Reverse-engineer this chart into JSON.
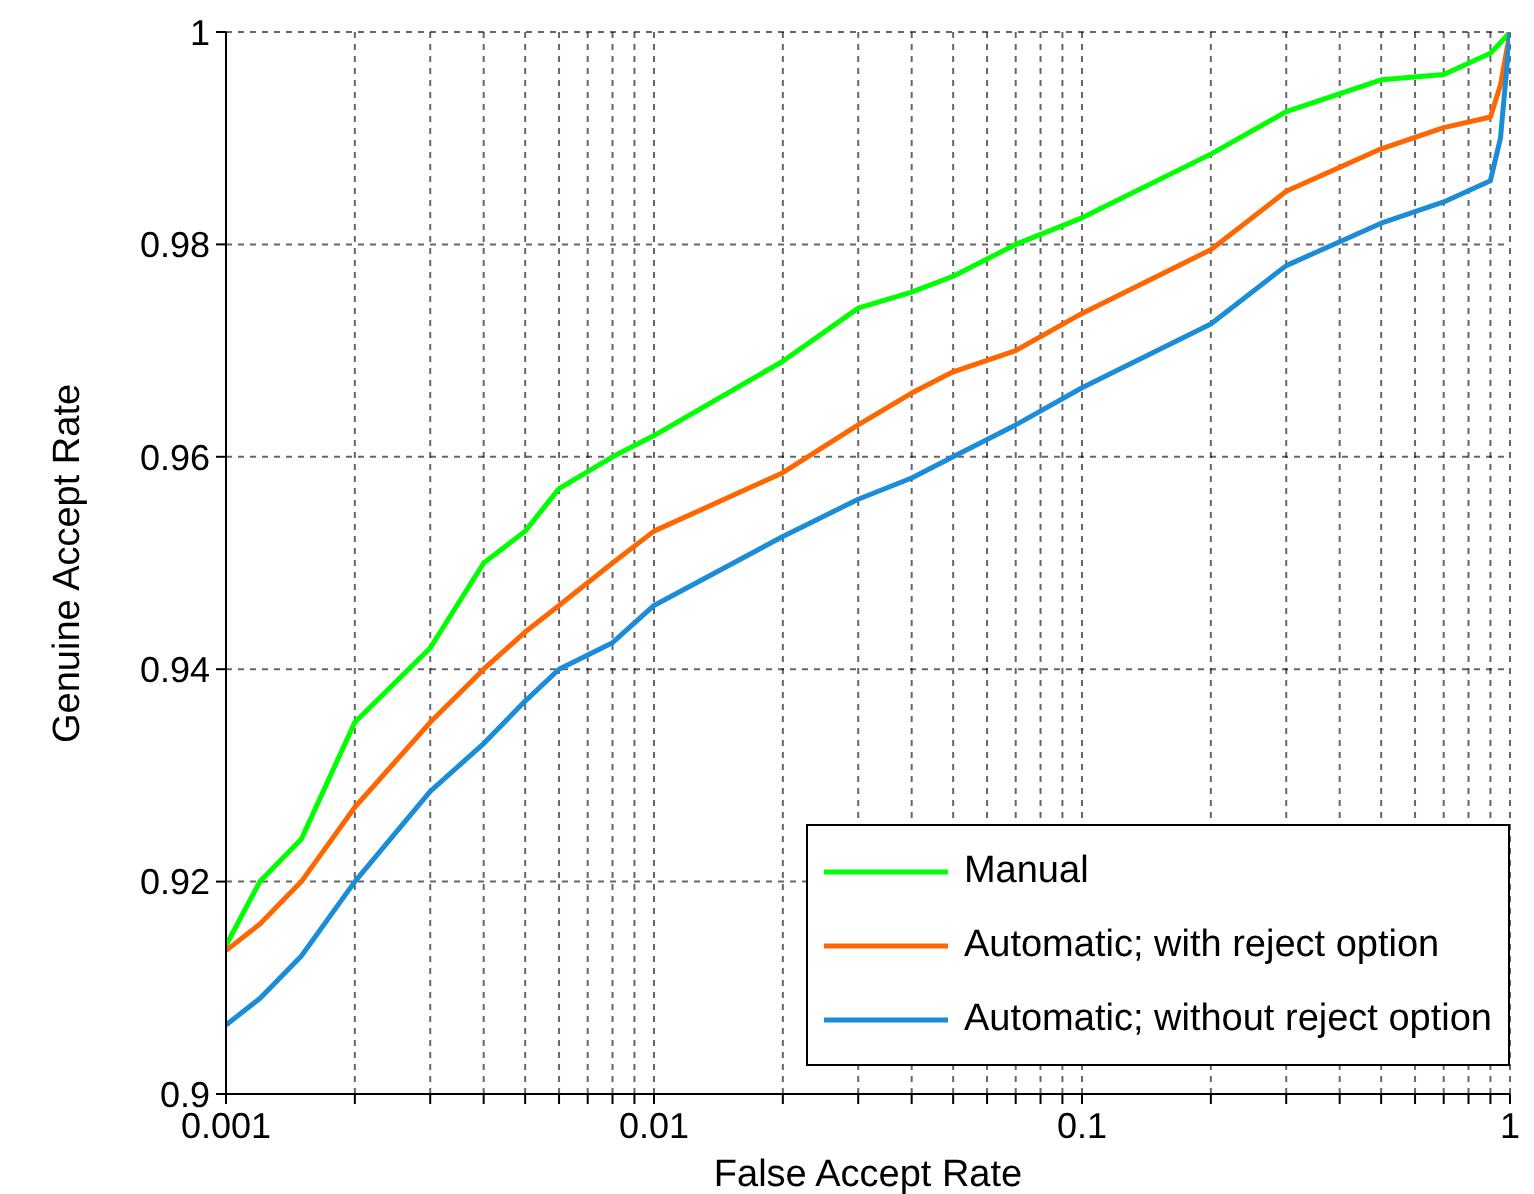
{
  "chart_data": {
    "type": "line",
    "xlabel": "False Accept Rate",
    "ylabel": "Genuine Accept Rate",
    "log": "x",
    "grid": true,
    "legend": "bottom right",
    "marker": "none",
    "line_style": "solid",
    "xlim": [
      0.001,
      1
    ],
    "ylim": [
      0.9,
      1
    ],
    "xticks": [
      0.001,
      {
        "value": 0.002,
        "label": null
      },
      {
        "value": 0.003,
        "label": null
      },
      {
        "value": 0.004,
        "label": null
      },
      {
        "value": 0.005,
        "label": null
      },
      {
        "value": 0.006,
        "label": null
      },
      {
        "value": 0.007,
        "label": null
      },
      {
        "value": 0.008,
        "label": null
      },
      {
        "value": 0.009,
        "label": null
      },
      0.01,
      {
        "value": 0.02,
        "label": null
      },
      {
        "value": 0.03,
        "label": null
      },
      {
        "value": 0.04,
        "label": null
      },
      {
        "value": 0.05,
        "label": null
      },
      {
        "value": 0.06,
        "label": null
      },
      {
        "value": 0.07,
        "label": null
      },
      {
        "value": 0.08,
        "label": null
      },
      {
        "value": 0.09,
        "label": null
      },
      0.1,
      {
        "value": 0.2,
        "label": null
      },
      {
        "value": 0.3,
        "label": null
      },
      {
        "value": 0.4,
        "label": null
      },
      {
        "value": 0.5,
        "label": null
      },
      {
        "value": 0.6,
        "label": null
      },
      {
        "value": 0.7,
        "label": null
      },
      {
        "value": 0.8,
        "label": null
      },
      {
        "value": 0.9,
        "label": null
      },
      1
    ],
    "yticks": [
      0.9,
      0.92,
      0.94,
      0.96,
      0.98,
      1
    ],
    "x": [
      0.001,
      0.0012,
      0.0015,
      0.002,
      0.003,
      0.004,
      0.005,
      0.006,
      0.008,
      0.01,
      0.02,
      0.03,
      0.04,
      0.05,
      0.07,
      0.1,
      0.2,
      0.3,
      0.5,
      0.7,
      0.9,
      0.95,
      1
    ],
    "series": [
      {
        "name": "Manual",
        "color": "#00ff00",
        "values": [
          0.914,
          0.92,
          0.924,
          0.935,
          0.942,
          0.95,
          0.953,
          0.957,
          0.96,
          0.962,
          0.969,
          0.974,
          0.9755,
          0.977,
          0.98,
          0.9825,
          0.9885,
          0.9925,
          0.9955,
          0.996,
          0.998,
          0.999,
          1
        ]
      },
      {
        "name": "Automatic; with reject option",
        "color": "#ff6600",
        "values": [
          0.9135,
          0.916,
          0.92,
          0.927,
          0.935,
          0.94,
          0.9435,
          0.946,
          0.95,
          0.953,
          0.9585,
          0.963,
          0.966,
          0.968,
          0.97,
          0.9735,
          0.9795,
          0.985,
          0.989,
          0.991,
          0.992,
          0.995,
          1
        ]
      },
      {
        "name": "Automatic; without reject option",
        "color": "#1a8cd8",
        "values": [
          0.9065,
          0.909,
          0.913,
          0.92,
          0.9285,
          0.933,
          0.937,
          0.94,
          0.9425,
          0.946,
          0.9525,
          0.956,
          0.958,
          0.96,
          0.963,
          0.9665,
          0.9725,
          0.978,
          0.982,
          0.984,
          0.986,
          0.99,
          1
        ]
      }
    ]
  }
}
